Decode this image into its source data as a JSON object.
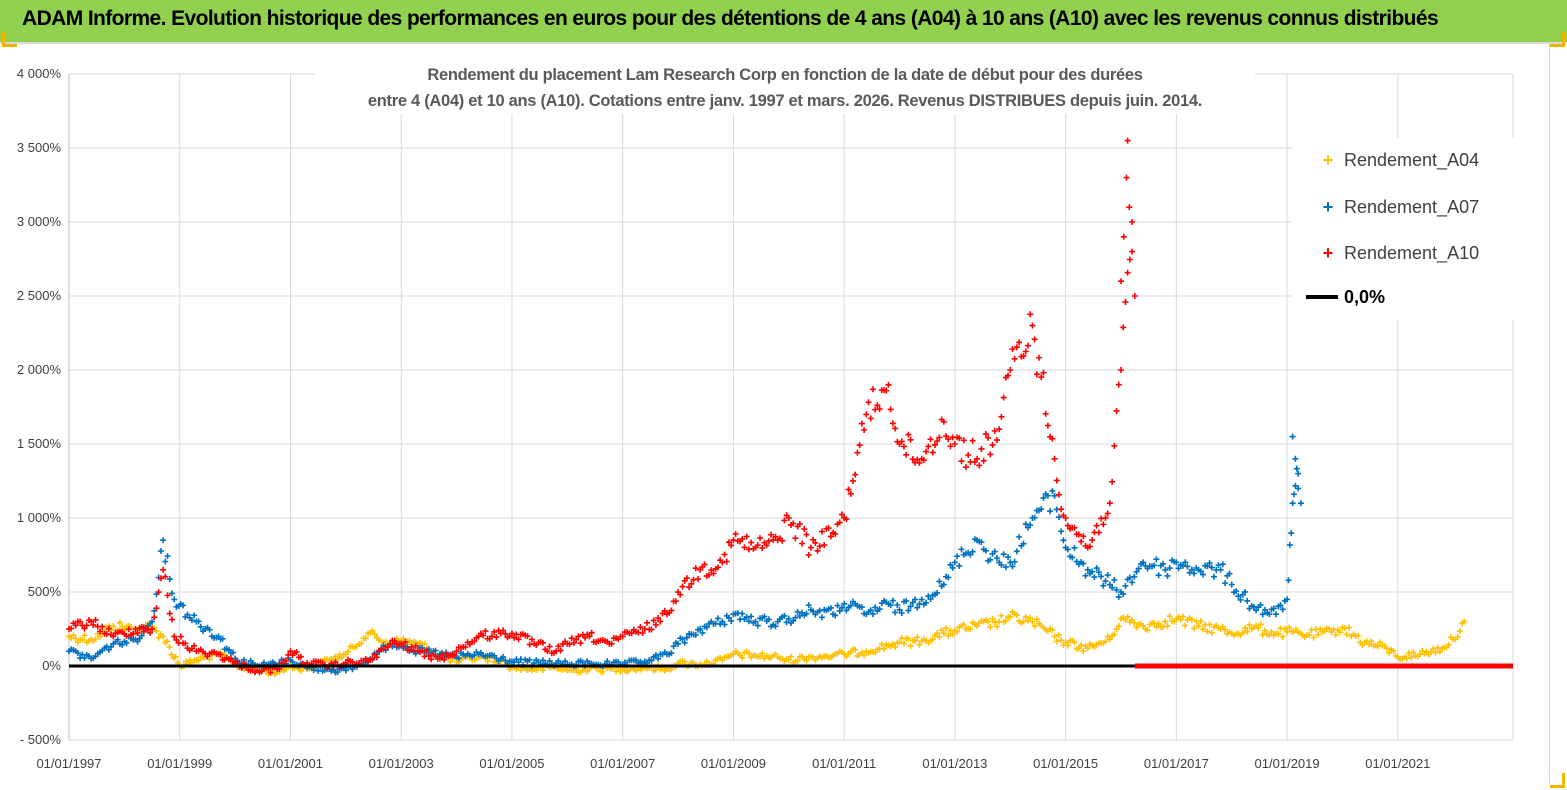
{
  "banner": {
    "title": "ADAM Informe. Evolution historique des performances en euros pour des détentions de 4 ans (A04) à 10 ans (A10) avec les revenus connus distribués"
  },
  "chart_data": {
    "type": "scatter",
    "title_line1": "Rendement du placement Lam Research Corp en fonction de la date de début pour des durées",
    "title_line2": "entre 4 (A04) et 10 ans (A10).  Cotations entre janv. 1997 et mars. 2026. Revenus DISTRIBUES depuis juin. 2014.",
    "xlabel": "",
    "ylabel": "",
    "xlim": [
      "1997-01-01",
      "2023-02-01"
    ],
    "ylim": [
      -500,
      4000
    ],
    "y_ticks": [
      -500,
      0,
      500,
      1000,
      1500,
      2000,
      2500,
      3000,
      3500,
      4000
    ],
    "y_tick_labels": [
      "- 500%",
      "0%",
      "500%",
      "1 000%",
      "1 500%",
      "2 000%",
      "2 500%",
      "3 000%",
      "3 500%",
      "4 000%"
    ],
    "x_tick_labels": [
      "01/01/1997",
      "01/01/1999",
      "01/01/2001",
      "01/01/2003",
      "01/01/2005",
      "01/01/2007",
      "01/01/2009",
      "01/01/2011",
      "01/01/2013",
      "01/01/2015",
      "01/01/2017",
      "01/01/2019",
      "01/01/2021"
    ],
    "grid": true,
    "legend_position": "top-right",
    "series": [
      {
        "name": "Rendement_A04",
        "color": "#ffc000",
        "marker": "+",
        "x": [
          1997.0,
          1997.4,
          1997.8,
          1998.2,
          1998.5,
          1998.7,
          1999.0,
          1999.3,
          1999.7,
          2000.0,
          2000.4,
          2000.8,
          2001.0,
          2001.3,
          2001.7,
          2002.0,
          2002.4,
          2002.8,
          2003.0,
          2003.3,
          2003.7,
          2004.0,
          2004.4,
          2004.8,
          2005.0,
          2005.4,
          2005.8,
          2006.0,
          2006.4,
          2006.8,
          2007.0,
          2007.4,
          2007.8,
          2008.0,
          2008.4,
          2008.8,
          2009.0,
          2009.4,
          2009.8,
          2010.0,
          2010.4,
          2010.8,
          2011.0,
          2011.4,
          2011.8,
          2012.0,
          2012.4,
          2012.8,
          2013.0,
          2013.4,
          2013.8,
          2014.0,
          2014.4,
          2014.8,
          2015.0,
          2015.4,
          2015.8,
          2016.0,
          2016.4,
          2016.8,
          2017.0,
          2017.4,
          2017.8,
          2018.0,
          2018.4,
          2018.8,
          2019.0,
          2019.4,
          2019.8,
          2020.0,
          2020.4,
          2020.8,
          2021.0,
          2021.4,
          2021.8,
          2022.0,
          2022.2
        ],
        "y": [
          200,
          180,
          270,
          250,
          260,
          200,
          0,
          40,
          80,
          10,
          -30,
          -40,
          0,
          -20,
          40,
          80,
          220,
          150,
          170,
          150,
          80,
          30,
          60,
          40,
          -10,
          -20,
          -10,
          -30,
          -20,
          -20,
          -20,
          -10,
          -20,
          20,
          10,
          40,
          80,
          70,
          60,
          40,
          60,
          70,
          80,
          100,
          140,
          160,
          170,
          220,
          240,
          270,
          300,
          330,
          300,
          200,
          160,
          120,
          180,
          320,
          270,
          300,
          320,
          270,
          250,
          220,
          260,
          220,
          230,
          210,
          230,
          260,
          160,
          120,
          60,
          80,
          120,
          180,
          300
        ]
      },
      {
        "name": "Rendement_A07",
        "color": "#0070c0",
        "marker": "+",
        "x": [
          1997.0,
          1997.4,
          1997.8,
          1998.2,
          1998.5,
          1998.7,
          1998.9,
          1999.3,
          1999.7,
          2000.0,
          2000.4,
          2000.8,
          2001.0,
          2001.3,
          2001.7,
          2002.0,
          2002.4,
          2002.8,
          2003.0,
          2003.3,
          2003.7,
          2004.0,
          2004.4,
          2004.8,
          2005.0,
          2005.4,
          2005.8,
          2006.0,
          2006.4,
          2006.8,
          2007.0,
          2007.4,
          2007.8,
          2008.0,
          2008.4,
          2008.8,
          2009.0,
          2009.4,
          2009.8,
          2010.0,
          2010.4,
          2010.8,
          2011.0,
          2011.4,
          2011.8,
          2012.0,
          2012.4,
          2012.8,
          2013.0,
          2013.4,
          2013.8,
          2014.0,
          2014.4,
          2014.8,
          2015.0,
          2015.4,
          2015.8,
          2016.0,
          2016.4,
          2016.8,
          2017.0,
          2017.4,
          2017.8,
          2018.0,
          2018.4,
          2018.8,
          2019.0,
          2019.1,
          2019.2
        ],
        "y": [
          100,
          50,
          150,
          180,
          300,
          850,
          450,
          300,
          200,
          50,
          0,
          20,
          40,
          -10,
          -20,
          -30,
          40,
          150,
          150,
          100,
          80,
          60,
          80,
          50,
          30,
          20,
          20,
          10,
          20,
          10,
          10,
          30,
          80,
          150,
          250,
          300,
          350,
          300,
          300,
          320,
          380,
          350,
          420,
          350,
          420,
          380,
          450,
          550,
          700,
          850,
          700,
          700,
          1000,
          1150,
          800,
          650,
          550,
          500,
          700,
          650,
          700,
          650,
          650,
          550,
          400,
          350,
          450,
          1100,
          1300
        ]
      },
      {
        "name": "Rendement_A10",
        "color": "#ff0000",
        "marker": "+",
        "x": [
          1997.0,
          1997.4,
          1997.8,
          1998.2,
          1998.5,
          1998.7,
          1998.9,
          1999.3,
          1999.7,
          2000.0,
          2000.4,
          2000.8,
          2001.0,
          2001.3,
          2001.7,
          2002.0,
          2002.4,
          2002.8,
          2003.0,
          2003.3,
          2003.7,
          2004.0,
          2004.4,
          2004.8,
          2005.0,
          2005.4,
          2005.8,
          2006.0,
          2006.4,
          2006.8,
          2007.0,
          2007.4,
          2007.8,
          2008.0,
          2008.4,
          2008.8,
          2009.0,
          2009.4,
          2009.8,
          2010.0,
          2010.4,
          2010.8,
          2011.0,
          2011.4,
          2011.8,
          2012.0,
          2012.4,
          2012.8,
          2013.0,
          2013.4,
          2013.8,
          2014.0,
          2014.4,
          2014.8,
          2015.0,
          2015.4,
          2015.8,
          2016.0,
          2016.2
        ],
        "y": [
          250,
          300,
          200,
          250,
          250,
          650,
          200,
          100,
          80,
          20,
          -30,
          -20,
          100,
          20,
          0,
          20,
          30,
          150,
          150,
          100,
          50,
          100,
          200,
          220,
          220,
          150,
          100,
          150,
          200,
          150,
          200,
          250,
          350,
          500,
          650,
          700,
          850,
          800,
          850,
          1000,
          800,
          900,
          1000,
          1700,
          1900,
          1500,
          1400,
          1650,
          1500,
          1400,
          1600,
          2000,
          2300,
          1400,
          1000,
          800,
          1100,
          2000,
          3000
        ]
      },
      {
        "name": "0,0%",
        "color": "#000000",
        "marker": "line",
        "x": [
          1997.0,
          2016.25
        ],
        "y": [
          0,
          0
        ]
      },
      {
        "name": "",
        "color": "#ff0000",
        "marker": "line",
        "x": [
          2016.25,
          2023.0
        ],
        "y": [
          0,
          0
        ]
      }
    ]
  }
}
